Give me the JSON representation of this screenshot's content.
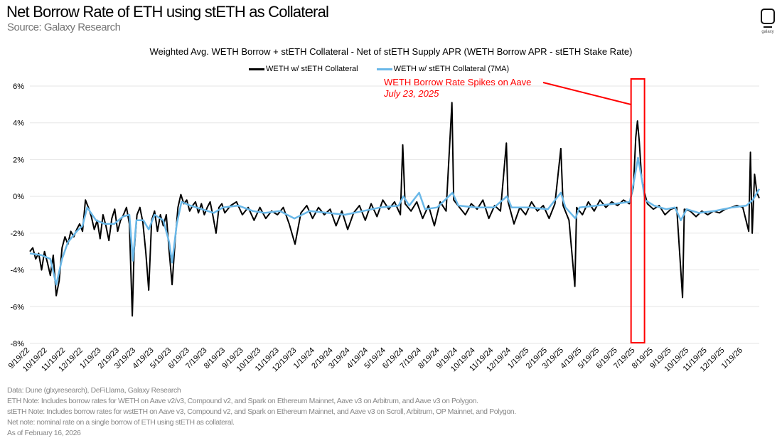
{
  "header": {
    "title": "Net Borrow Rate of ETH using stETH as Collateral",
    "source": "Source: Galaxy Research",
    "logo_text": "galaxy"
  },
  "footnotes": [
    "Data: Dune (glxyresearch), DeFiLlama, Galaxy Research",
    "ETH Note: Includes borrow rates for WETH on Aave v2/v3, Compound v2, and Spark on Ethereum Mainnet, Aave v3 on Arbitrum, and Aave v3 on Polygon.",
    "stETH Note: Includes  borrow rates for wstETH on Aave v3, Compound v2, and  Spark on Ethereum Mainnet, and Aave v3 on Scroll, Arbitrum, OP Mainnet, and Polygon.",
    "Net note: nominal rate on a single borrow of ETH using stETH as collateral.",
    "As of February 16, 2026"
  ],
  "chart_data": {
    "type": "line",
    "title": "Weighted Avg. WETH Borrow + stETH Collateral - Net of stETH Supply APR (WETH Borrow APR - stETH Stake Rate)",
    "xlabel": "",
    "ylabel": "",
    "ylim": [
      -8,
      6
    ],
    "xlim": [
      "2022-09-19",
      "2026-02-16"
    ],
    "grid": "horizontal",
    "legend": "top-center",
    "y_ticks": [
      "6%",
      "4%",
      "2%",
      "0%",
      "-2%",
      "-4%",
      "-6%",
      "-8%"
    ],
    "y_tick_values": [
      6,
      4,
      2,
      0,
      -2,
      -4,
      -6,
      -8
    ],
    "x_ticks": [
      "9/19/22",
      "10/19/22",
      "11/19/22",
      "12/19/22",
      "1/19/23",
      "2/19/23",
      "3/19/23",
      "4/19/23",
      "5/19/23",
      "6/19/23",
      "7/19/23",
      "8/19/23",
      "9/19/23",
      "10/19/23",
      "11/19/23",
      "12/19/23",
      "1/19/24",
      "2/19/24",
      "3/19/24",
      "4/19/24",
      "5/19/24",
      "6/19/24",
      "7/19/24",
      "8/19/24",
      "9/19/24",
      "10/19/24",
      "11/19/24",
      "12/19/24",
      "1/19/25",
      "2/19/25",
      "3/19/25",
      "4/19/25",
      "5/19/25",
      "6/19/25",
      "7/19/25",
      "8/19/25",
      "9/19/25",
      "10/19/25",
      "11/19/25",
      "12/19/25",
      "1/19/26"
    ],
    "series": [
      {
        "name": "WETH w/ stETH Collateral",
        "color": "#000000",
        "points": [
          [
            "2022-09-19",
            -3.0
          ],
          [
            "2022-09-24",
            -2.8
          ],
          [
            "2022-09-29",
            -3.4
          ],
          [
            "2022-10-04",
            -3.1
          ],
          [
            "2022-10-09",
            -4.0
          ],
          [
            "2022-10-14",
            -3.0
          ],
          [
            "2022-10-19",
            -3.6
          ],
          [
            "2022-10-24",
            -4.3
          ],
          [
            "2022-10-29",
            -3.2
          ],
          [
            "2022-11-03",
            -5.4
          ],
          [
            "2022-11-08",
            -4.6
          ],
          [
            "2022-11-13",
            -2.8
          ],
          [
            "2022-11-18",
            -2.2
          ],
          [
            "2022-11-23",
            -2.6
          ],
          [
            "2022-11-28",
            -1.9
          ],
          [
            "2022-12-03",
            -2.2
          ],
          [
            "2022-12-08",
            -1.8
          ],
          [
            "2022-12-13",
            -1.5
          ],
          [
            "2022-12-18",
            -1.9
          ],
          [
            "2022-12-23",
            -0.2
          ],
          [
            "2022-12-28",
            -0.6
          ],
          [
            "2023-01-02",
            -1.1
          ],
          [
            "2023-01-07",
            -1.8
          ],
          [
            "2023-01-12",
            -1.3
          ],
          [
            "2023-01-17",
            -2.3
          ],
          [
            "2023-01-22",
            -1.0
          ],
          [
            "2023-01-27",
            -1.6
          ],
          [
            "2023-02-01",
            -2.4
          ],
          [
            "2023-02-06",
            -1.2
          ],
          [
            "2023-02-11",
            -0.7
          ],
          [
            "2023-02-16",
            -1.9
          ],
          [
            "2023-02-21",
            -1.3
          ],
          [
            "2023-02-26",
            -1.0
          ],
          [
            "2023-03-03",
            -0.6
          ],
          [
            "2023-03-08",
            -1.5
          ],
          [
            "2023-03-13",
            -6.5
          ],
          [
            "2023-03-16",
            -3.0
          ],
          [
            "2023-03-21",
            -1.0
          ],
          [
            "2023-03-26",
            -0.6
          ],
          [
            "2023-03-31",
            -1.4
          ],
          [
            "2023-04-05",
            -3.0
          ],
          [
            "2023-04-10",
            -5.1
          ],
          [
            "2023-04-15",
            -1.3
          ],
          [
            "2023-04-20",
            -0.8
          ],
          [
            "2023-04-25",
            -1.9
          ],
          [
            "2023-04-30",
            -1.0
          ],
          [
            "2023-05-05",
            -1.6
          ],
          [
            "2023-05-10",
            -1.0
          ],
          [
            "2023-05-15",
            -3.0
          ],
          [
            "2023-05-20",
            -4.8
          ],
          [
            "2023-05-25",
            -2.5
          ],
          [
            "2023-05-30",
            -0.6
          ],
          [
            "2023-06-04",
            0.1
          ],
          [
            "2023-06-09",
            -0.4
          ],
          [
            "2023-06-14",
            -0.2
          ],
          [
            "2023-06-19",
            -0.8
          ],
          [
            "2023-06-24",
            -0.5
          ],
          [
            "2023-06-29",
            -0.3
          ],
          [
            "2023-07-04",
            -0.9
          ],
          [
            "2023-07-09",
            -0.4
          ],
          [
            "2023-07-14",
            -1.0
          ],
          [
            "2023-07-19",
            -0.6
          ],
          [
            "2023-07-24",
            -0.3
          ],
          [
            "2023-07-29",
            -1.1
          ],
          [
            "2023-08-03",
            -2.0
          ],
          [
            "2023-08-08",
            -0.6
          ],
          [
            "2023-08-13",
            -0.4
          ],
          [
            "2023-08-18",
            -0.9
          ],
          [
            "2023-08-28",
            -0.5
          ],
          [
            "2023-09-07",
            -0.3
          ],
          [
            "2023-09-17",
            -1.0
          ],
          [
            "2023-09-27",
            -0.6
          ],
          [
            "2023-10-07",
            -1.3
          ],
          [
            "2023-10-17",
            -0.6
          ],
          [
            "2023-10-27",
            -1.2
          ],
          [
            "2023-11-06",
            -0.8
          ],
          [
            "2023-11-16",
            -1.0
          ],
          [
            "2023-11-26",
            -0.6
          ],
          [
            "2023-12-06",
            -1.5
          ],
          [
            "2023-12-16",
            -2.6
          ],
          [
            "2023-12-26",
            -0.9
          ],
          [
            "2024-01-05",
            -0.5
          ],
          [
            "2024-01-15",
            -1.2
          ],
          [
            "2024-01-25",
            -0.6
          ],
          [
            "2024-02-04",
            -1.0
          ],
          [
            "2024-02-14",
            -0.7
          ],
          [
            "2024-02-24",
            -1.6
          ],
          [
            "2024-03-05",
            -0.8
          ],
          [
            "2024-03-15",
            -1.8
          ],
          [
            "2024-03-25",
            -0.9
          ],
          [
            "2024-04-04",
            -0.5
          ],
          [
            "2024-04-14",
            -1.3
          ],
          [
            "2024-04-24",
            -0.4
          ],
          [
            "2024-05-04",
            -1.1
          ],
          [
            "2024-05-14",
            -0.2
          ],
          [
            "2024-05-24",
            -0.7
          ],
          [
            "2024-06-03",
            -0.3
          ],
          [
            "2024-06-13",
            -1.0
          ],
          [
            "2024-06-17",
            2.8
          ],
          [
            "2024-06-21",
            -0.4
          ],
          [
            "2024-07-01",
            -0.8
          ],
          [
            "2024-07-11",
            -0.3
          ],
          [
            "2024-07-21",
            -1.2
          ],
          [
            "2024-07-31",
            -0.5
          ],
          [
            "2024-08-10",
            -1.6
          ],
          [
            "2024-08-20",
            -0.3
          ],
          [
            "2024-08-30",
            -0.8
          ],
          [
            "2024-09-09",
            5.1
          ],
          [
            "2024-09-12",
            -0.2
          ],
          [
            "2024-09-22",
            -0.6
          ],
          [
            "2024-10-02",
            -1.0
          ],
          [
            "2024-10-12",
            -0.4
          ],
          [
            "2024-10-22",
            -0.7
          ],
          [
            "2024-11-01",
            -0.2
          ],
          [
            "2024-11-11",
            -1.2
          ],
          [
            "2024-11-21",
            -0.5
          ],
          [
            "2024-12-01",
            -0.8
          ],
          [
            "2024-12-11",
            2.9
          ],
          [
            "2024-12-14",
            -0.3
          ],
          [
            "2024-12-24",
            -1.5
          ],
          [
            "2025-01-03",
            -0.6
          ],
          [
            "2025-01-13",
            -1.0
          ],
          [
            "2025-01-23",
            -0.3
          ],
          [
            "2025-02-02",
            -0.8
          ],
          [
            "2025-02-12",
            -0.5
          ],
          [
            "2025-02-22",
            -1.2
          ],
          [
            "2025-03-04",
            -0.4
          ],
          [
            "2025-03-14",
            2.6
          ],
          [
            "2025-03-18",
            -0.5
          ],
          [
            "2025-03-28",
            -1.3
          ],
          [
            "2025-04-07",
            -4.9
          ],
          [
            "2025-04-10",
            -0.6
          ],
          [
            "2025-04-20",
            -1.0
          ],
          [
            "2025-04-30",
            -0.3
          ],
          [
            "2025-05-10",
            -0.8
          ],
          [
            "2025-05-20",
            -0.2
          ],
          [
            "2025-05-30",
            -0.6
          ],
          [
            "2025-06-09",
            -0.3
          ],
          [
            "2025-06-19",
            -0.5
          ],
          [
            "2025-06-29",
            -0.2
          ],
          [
            "2025-07-09",
            -0.4
          ],
          [
            "2025-07-16",
            0.5
          ],
          [
            "2025-07-20",
            3.2
          ],
          [
            "2025-07-23",
            4.1
          ],
          [
            "2025-07-26",
            3.0
          ],
          [
            "2025-07-30",
            1.0
          ],
          [
            "2025-08-04",
            0.2
          ],
          [
            "2025-08-09",
            -0.4
          ],
          [
            "2025-08-19",
            -0.7
          ],
          [
            "2025-08-29",
            -0.5
          ],
          [
            "2025-09-08",
            -1.0
          ],
          [
            "2025-09-18",
            -0.7
          ],
          [
            "2025-09-28",
            -0.6
          ],
          [
            "2025-10-08",
            -5.5
          ],
          [
            "2025-10-11",
            -0.7
          ],
          [
            "2025-10-21",
            -0.8
          ],
          [
            "2025-10-31",
            -1.1
          ],
          [
            "2025-11-10",
            -0.8
          ],
          [
            "2025-11-20",
            -1.0
          ],
          [
            "2025-11-30",
            -0.8
          ],
          [
            "2025-12-10",
            -0.9
          ],
          [
            "2025-12-20",
            -0.7
          ],
          [
            "2025-12-30",
            -0.6
          ],
          [
            "2026-01-09",
            -0.5
          ],
          [
            "2026-01-19",
            -0.6
          ],
          [
            "2026-01-29",
            -1.9
          ],
          [
            "2026-02-01",
            2.4
          ],
          [
            "2026-02-04",
            -2.0
          ],
          [
            "2026-02-08",
            1.2
          ],
          [
            "2026-02-12",
            0.2
          ],
          [
            "2026-02-16",
            -0.1
          ]
        ]
      },
      {
        "name": "WETH w/ stETH Collateral (7MA)",
        "color": "#6ab8e8",
        "points": [
          [
            "2022-09-19",
            -3.1
          ],
          [
            "2022-10-09",
            -3.2
          ],
          [
            "2022-10-24",
            -3.4
          ],
          [
            "2022-11-03",
            -4.8
          ],
          [
            "2022-11-13",
            -3.4
          ],
          [
            "2022-11-23",
            -2.5
          ],
          [
            "2022-12-08",
            -1.9
          ],
          [
            "2022-12-18",
            -1.6
          ],
          [
            "2022-12-26",
            -0.6
          ],
          [
            "2023-01-10",
            -1.3
          ],
          [
            "2023-01-25",
            -1.5
          ],
          [
            "2023-02-10",
            -1.5
          ],
          [
            "2023-02-25",
            -1.1
          ],
          [
            "2023-03-08",
            -1.0
          ],
          [
            "2023-03-14",
            -3.5
          ],
          [
            "2023-03-20",
            -1.3
          ],
          [
            "2023-04-01",
            -1.3
          ],
          [
            "2023-04-10",
            -1.8
          ],
          [
            "2023-04-20",
            -1.0
          ],
          [
            "2023-05-05",
            -1.3
          ],
          [
            "2023-05-15",
            -2.5
          ],
          [
            "2023-05-20",
            -3.6
          ],
          [
            "2023-05-28",
            -1.5
          ],
          [
            "2023-06-05",
            -0.3
          ],
          [
            "2023-06-20",
            -0.5
          ],
          [
            "2023-07-10",
            -0.7
          ],
          [
            "2023-07-30",
            -0.9
          ],
          [
            "2023-08-15",
            -0.6
          ],
          [
            "2023-09-10",
            -0.5
          ],
          [
            "2023-10-05",
            -0.8
          ],
          [
            "2023-10-25",
            -0.9
          ],
          [
            "2023-11-20",
            -0.8
          ],
          [
            "2023-12-15",
            -1.2
          ],
          [
            "2024-01-10",
            -0.8
          ],
          [
            "2024-02-10",
            -0.9
          ],
          [
            "2024-03-10",
            -1.0
          ],
          [
            "2024-04-10",
            -0.8
          ],
          [
            "2024-05-10",
            -0.6
          ],
          [
            "2024-06-10",
            -0.5
          ],
          [
            "2024-06-18",
            0.0
          ],
          [
            "2024-06-28",
            -0.5
          ],
          [
            "2024-07-15",
            0.2
          ],
          [
            "2024-07-25",
            -0.7
          ],
          [
            "2024-08-15",
            -0.6
          ],
          [
            "2024-09-10",
            0.2
          ],
          [
            "2024-09-20",
            -0.5
          ],
          [
            "2024-10-20",
            -0.6
          ],
          [
            "2024-11-20",
            -0.6
          ],
          [
            "2024-12-12",
            0.0
          ],
          [
            "2024-12-20",
            -0.6
          ],
          [
            "2025-01-20",
            -0.6
          ],
          [
            "2025-02-20",
            -0.7
          ],
          [
            "2025-03-14",
            0.2
          ],
          [
            "2025-03-22",
            -0.6
          ],
          [
            "2025-04-08",
            -1.2
          ],
          [
            "2025-04-15",
            -0.6
          ],
          [
            "2025-05-15",
            -0.5
          ],
          [
            "2025-06-15",
            -0.4
          ],
          [
            "2025-07-10",
            -0.3
          ],
          [
            "2025-07-18",
            1.0
          ],
          [
            "2025-07-24",
            2.1
          ],
          [
            "2025-07-30",
            1.0
          ],
          [
            "2025-08-05",
            -0.2
          ],
          [
            "2025-08-20",
            -0.5
          ],
          [
            "2025-09-10",
            -0.7
          ],
          [
            "2025-09-25",
            -0.6
          ],
          [
            "2025-10-05",
            -1.3
          ],
          [
            "2025-10-15",
            -0.7
          ],
          [
            "2025-11-05",
            -0.9
          ],
          [
            "2025-12-01",
            -0.8
          ],
          [
            "2026-01-01",
            -0.6
          ],
          [
            "2026-01-25",
            -0.5
          ],
          [
            "2026-02-05",
            -0.2
          ],
          [
            "2026-02-16",
            0.4
          ]
        ]
      }
    ],
    "annotation": {
      "text": "WETH Borrow Rate Spikes on Aave",
      "date_text": "July 23, 2025",
      "date": "2025-07-23",
      "highlight_range": [
        "2025-07-12",
        "2025-08-04"
      ],
      "color": "#ff0000"
    }
  }
}
